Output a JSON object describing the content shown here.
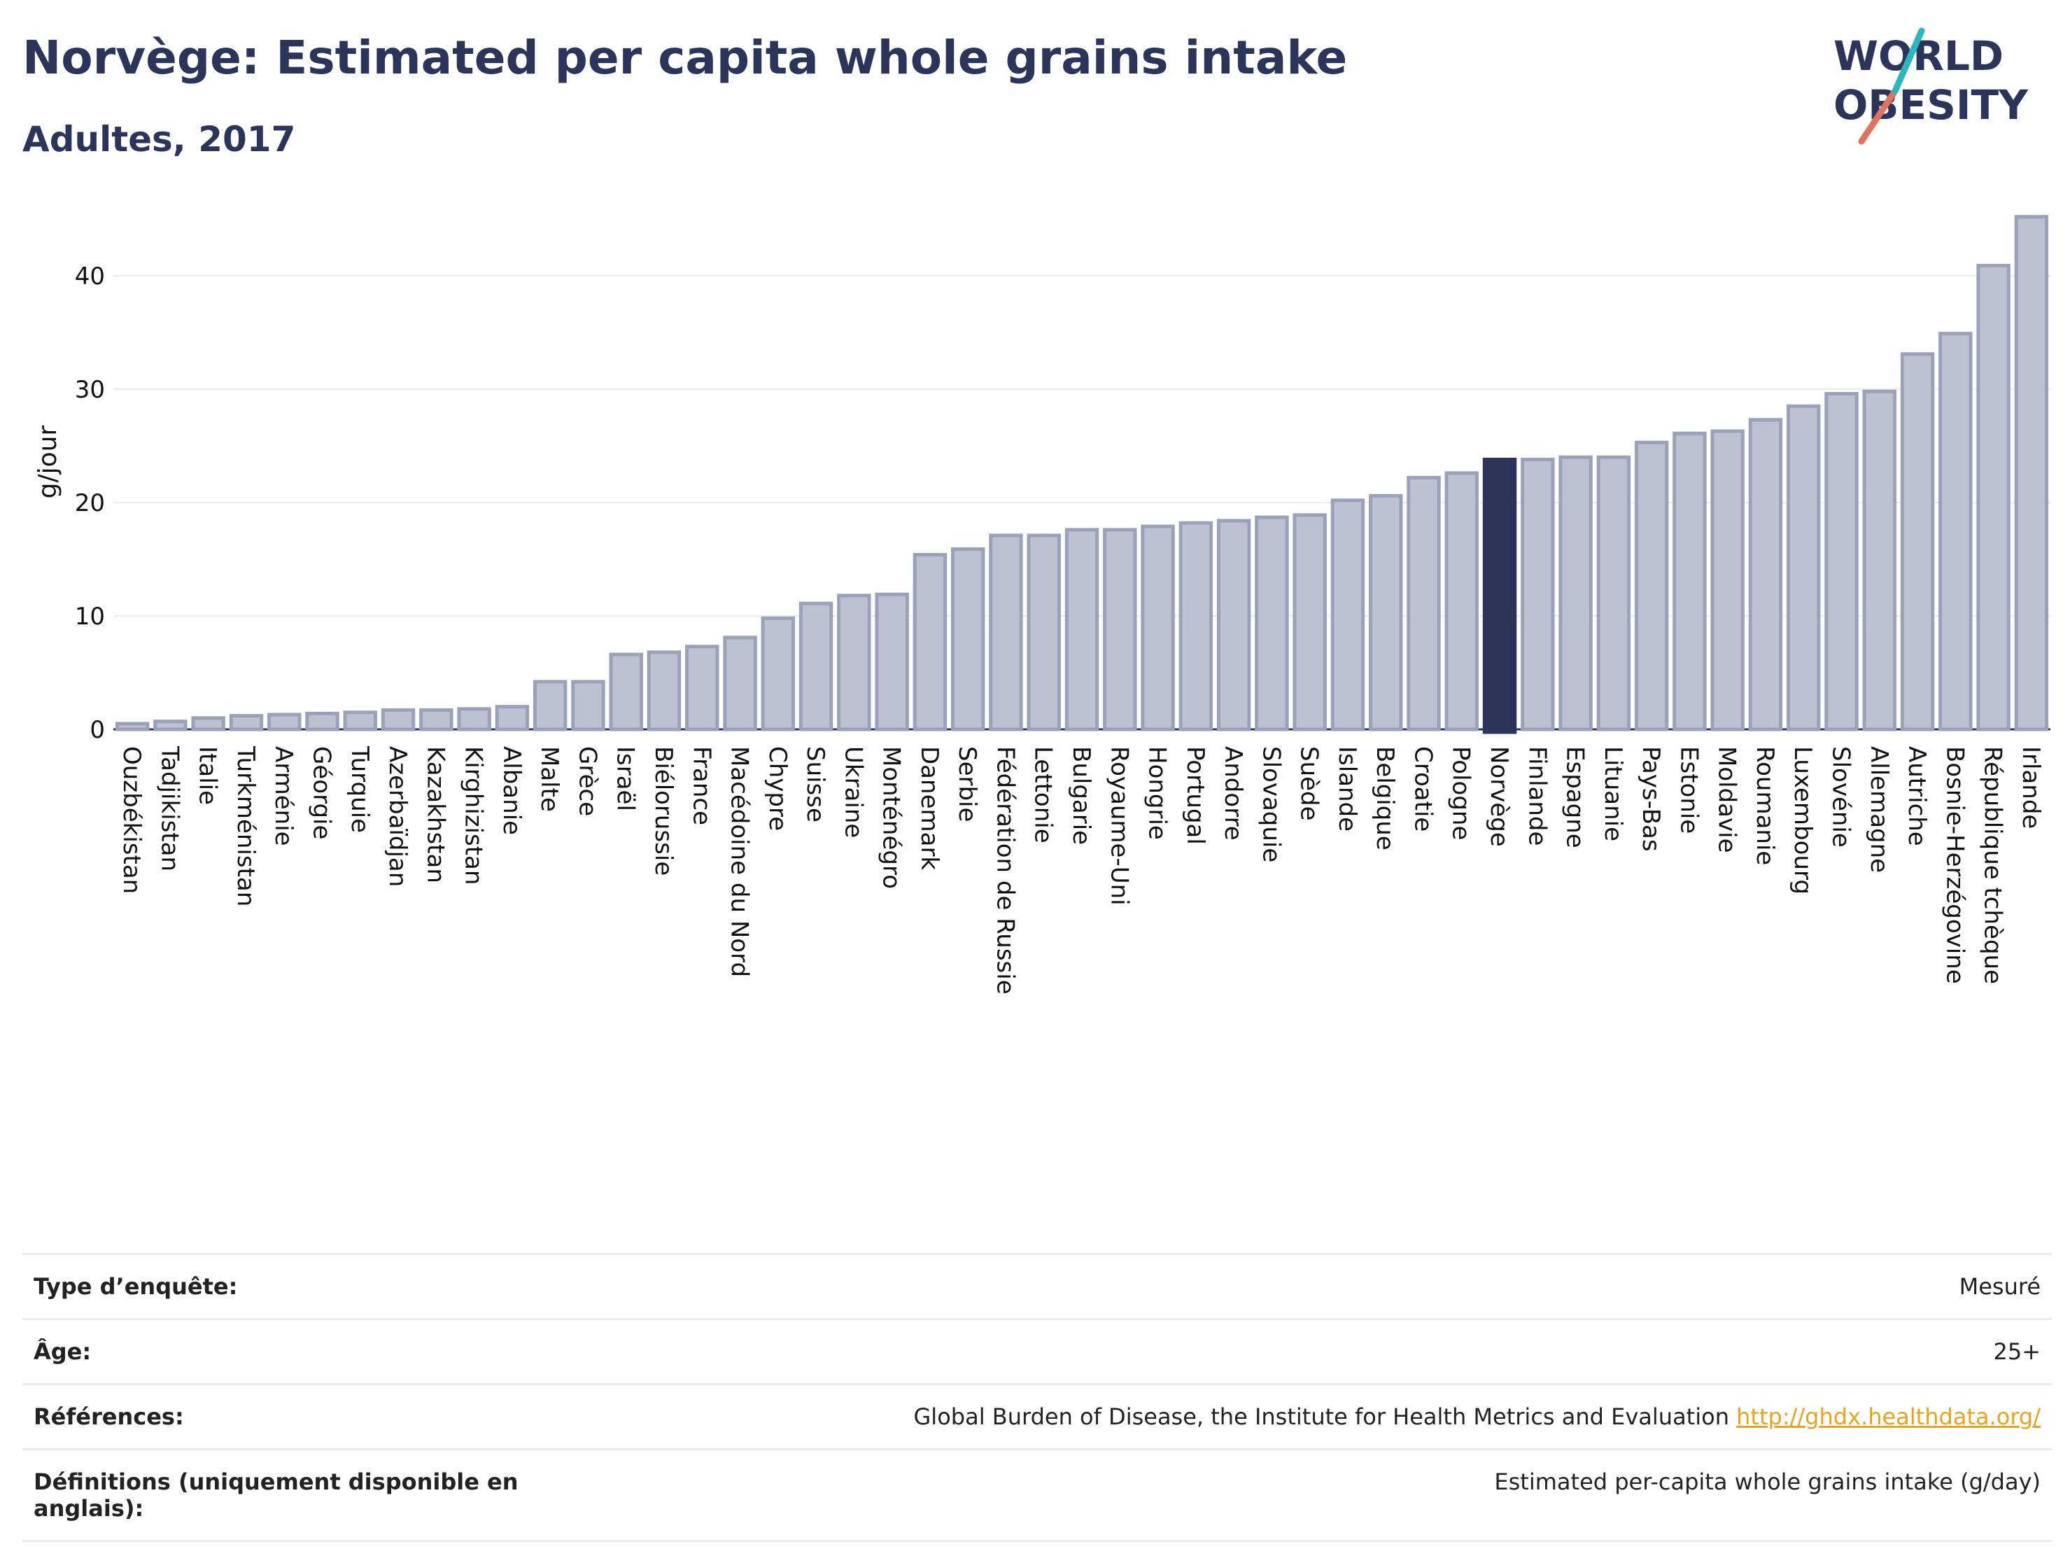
{
  "header": {
    "title": "Norvège: Estimated per capita whole grains intake",
    "subtitle": "Adultes, 2017"
  },
  "logo": {
    "line1": "WORLD",
    "line2": "OBESITY"
  },
  "chart_data": {
    "type": "bar",
    "ylabel": "g/jour",
    "ylim": [
      0,
      46
    ],
    "yticks": [
      0,
      10,
      20,
      30,
      40
    ],
    "grid": true,
    "highlight": "Norvège",
    "colors": {
      "bar": "#bcc2d1",
      "bar_border": "#9aa1b8",
      "highlight": "#2b3459",
      "grid": "#e6ecf1"
    },
    "categories": [
      "Ouzbékistan",
      "Tadjikistan",
      "Italie",
      "Turkménistan",
      "Arménie",
      "Géorgie",
      "Turquie",
      "Azerbaïdjan",
      "Kazakhstan",
      "Kirghizistan",
      "Albanie",
      "Malte",
      "Grèce",
      "Israël",
      "Biélorussie",
      "France",
      "Macédoine du Nord",
      "Chypre",
      "Suisse",
      "Ukraine",
      "Monténégro",
      "Danemark",
      "Serbie",
      "Fédération de Russie",
      "Lettonie",
      "Bulgarie",
      "Royaume-Uni",
      "Hongrie",
      "Portugal",
      "Andorre",
      "Slovaquie",
      "Suède",
      "Islande",
      "Belgique",
      "Croatie",
      "Pologne",
      "Norvège",
      "Finlande",
      "Espagne",
      "Lituanie",
      "Pays-Bas",
      "Estonie",
      "Moldavie",
      "Roumanie",
      "Luxembourg",
      "Slovénie",
      "Allemagne",
      "Autriche",
      "Bosnie-Herzégovine",
      "République tchèque",
      "Irlande"
    ],
    "values": [
      0.5,
      0.7,
      1.0,
      1.2,
      1.3,
      1.4,
      1.5,
      1.7,
      1.7,
      1.8,
      2.0,
      4.2,
      4.2,
      6.6,
      6.8,
      7.3,
      8.1,
      9.8,
      11.1,
      11.8,
      11.9,
      15.4,
      15.9,
      17.1,
      17.1,
      17.6,
      17.6,
      17.9,
      18.2,
      18.4,
      18.7,
      18.9,
      20.2,
      20.6,
      22.2,
      22.6,
      23.8,
      23.8,
      24.0,
      24.0,
      25.3,
      26.1,
      26.3,
      27.3,
      28.5,
      29.6,
      29.8,
      33.1,
      34.9,
      40.9,
      45.2
    ]
  },
  "info": [
    {
      "label": "Type d’enquête:",
      "value": "Mesuré"
    },
    {
      "label": "Âge:",
      "value": "25+"
    },
    {
      "label": "Références:",
      "value": "Global Burden of Disease, the Institute for Health Metrics and Evaluation",
      "link": "http://ghdx.healthdata.org/"
    },
    {
      "label": "Définitions (uniquement disponible en anglais):",
      "value": "Estimated per-capita whole grains intake (g/day)"
    }
  ]
}
